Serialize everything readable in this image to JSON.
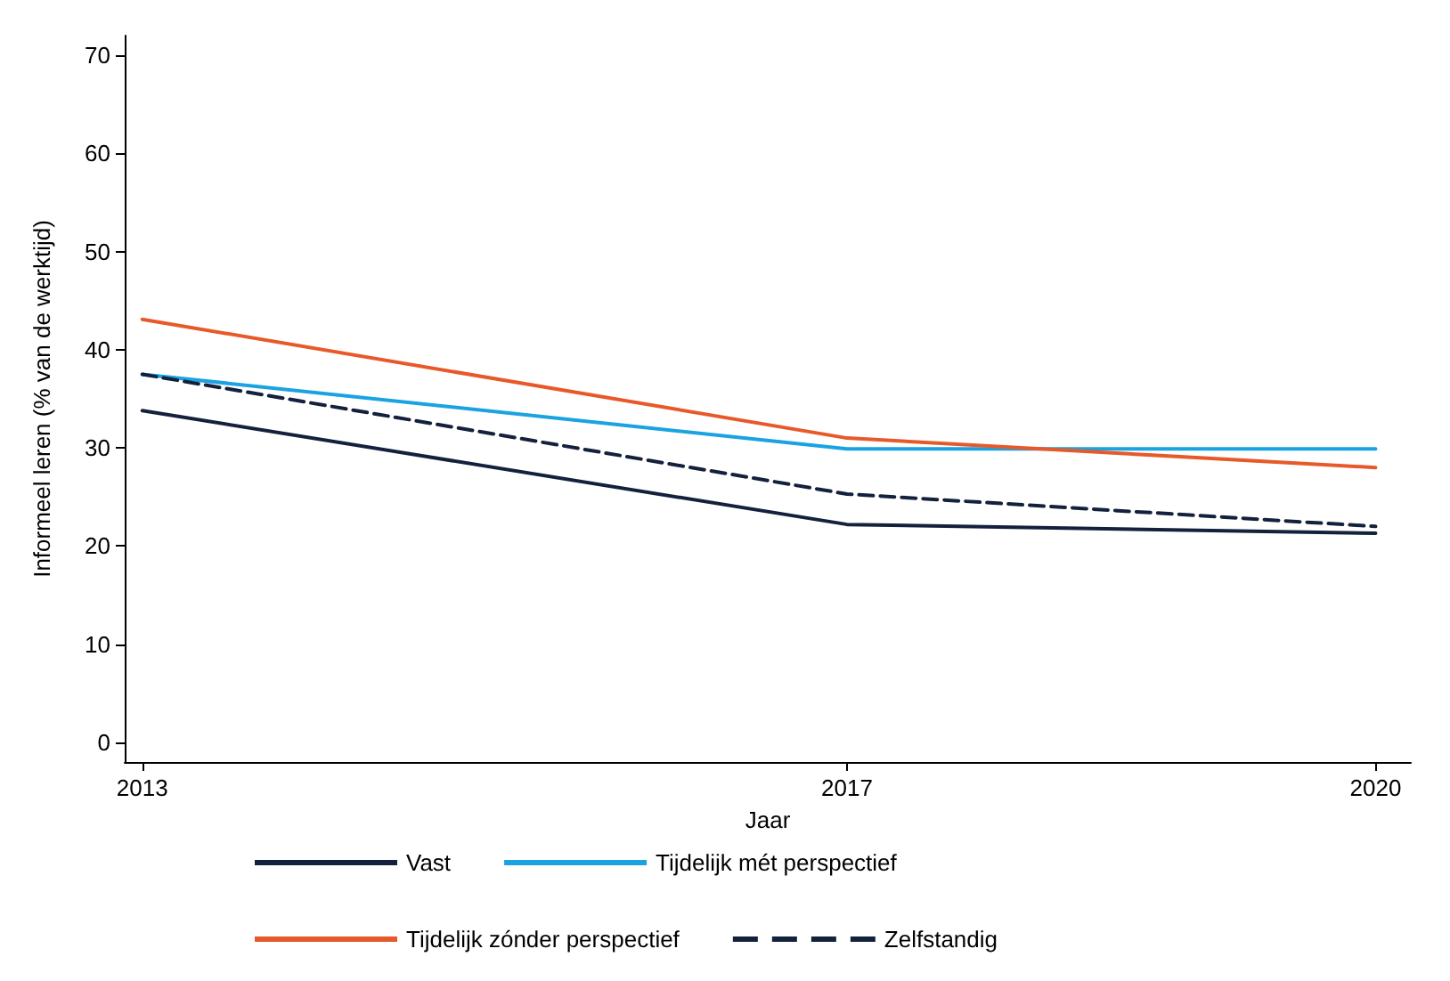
{
  "chart_data": {
    "type": "line",
    "xlabel": "Jaar",
    "ylabel": "Informeel leren (% van de werktijd)",
    "x": [
      2013,
      2017,
      2020
    ],
    "series": [
      {
        "name": "Vast",
        "color": "#14213d",
        "values": [
          33.8,
          22.2,
          21.3
        ],
        "line_style": "solid"
      },
      {
        "name": "Tijdelijk mét perspectief",
        "color": "#1aa3e0",
        "values": [
          37.5,
          29.9,
          29.9
        ],
        "line_style": "solid"
      },
      {
        "name": "Tijdelijk zónder perspectief",
        "color": "#e8592a",
        "values": [
          43.1,
          31.0,
          28.0
        ],
        "line_style": "solid"
      },
      {
        "name": "Zelfstandig",
        "color": "#14213d",
        "values": [
          37.5,
          25.3,
          22.0
        ],
        "line_style": "dashed"
      }
    ],
    "xlim": [
      2012.9,
      2020.2
    ],
    "xticks": [
      2013,
      2017,
      2020
    ],
    "ylim": [
      -2,
      72
    ],
    "yticks": [
      0,
      10,
      20,
      30,
      40,
      50,
      60,
      70
    ],
    "grid": false,
    "legend": "bottom",
    "marker": "none"
  }
}
